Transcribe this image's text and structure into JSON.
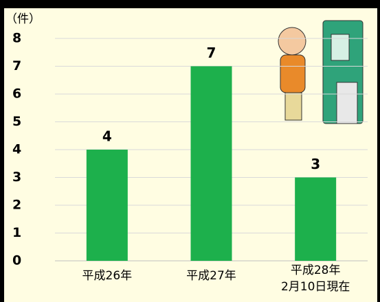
{
  "chart_data": {
    "type": "bar",
    "y_label": "（件）",
    "categories": [
      "平成26年",
      "平成27年",
      "平成28年\n2月10日現在"
    ],
    "values": [
      4,
      7,
      3
    ],
    "color": "#1db04c",
    "ylim": [
      0,
      8
    ],
    "yticks": [
      0,
      1,
      2,
      3,
      4,
      5,
      6,
      7,
      8
    ],
    "grid": true
  }
}
